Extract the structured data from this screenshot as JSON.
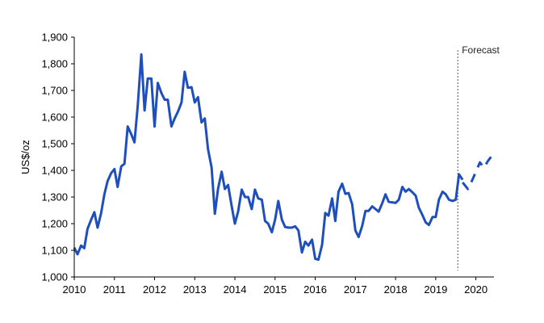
{
  "chart_data": {
    "type": "line",
    "title": "",
    "xlabel": "",
    "ylabel": "US$/oz",
    "xlim": [
      2010,
      2020.45
    ],
    "ylim": [
      1000,
      1900
    ],
    "y_ticks": [
      1000,
      1100,
      1200,
      1300,
      1400,
      1500,
      1600,
      1700,
      1800,
      1900
    ],
    "y_tick_labels": [
      "1,000",
      "1,100",
      "1,200",
      "1,300",
      "1,400",
      "1,500",
      "1,600",
      "1,700",
      "1,800",
      "1,900"
    ],
    "x_ticks": [
      2010,
      2011,
      2012,
      2013,
      2014,
      2015,
      2016,
      2017,
      2018,
      2019,
      2020
    ],
    "x_tick_labels": [
      "2010",
      "2011",
      "2012",
      "2013",
      "2014",
      "2015",
      "2016",
      "2017",
      "2018",
      "2019",
      "2020"
    ],
    "grid": false,
    "forecast_start": 2019.55,
    "forecast_label": "Forecast",
    "colors": {
      "series": "#1F4EBD",
      "forecast_line": "#555555",
      "axis": "#000000"
    },
    "series": [
      {
        "style": "solid",
        "x": [
          2010.0,
          2010.08,
          2010.17,
          2010.25,
          2010.33,
          2010.42,
          2010.5,
          2010.58,
          2010.67,
          2010.75,
          2010.83,
          2010.92,
          2011.0,
          2011.08,
          2011.17,
          2011.25,
          2011.33,
          2011.42,
          2011.5,
          2011.58,
          2011.67,
          2011.75,
          2011.83,
          2011.92,
          2012.0,
          2012.08,
          2012.17,
          2012.25,
          2012.33,
          2012.42,
          2012.5,
          2012.58,
          2012.67,
          2012.75,
          2012.83,
          2012.92,
          2013.0,
          2013.08,
          2013.17,
          2013.25,
          2013.33,
          2013.42,
          2013.5,
          2013.58,
          2013.67,
          2013.75,
          2013.83,
          2013.92,
          2014.0,
          2014.08,
          2014.17,
          2014.25,
          2014.33,
          2014.42,
          2014.5,
          2014.58,
          2014.67,
          2014.75,
          2014.83,
          2014.92,
          2015.0,
          2015.08,
          2015.17,
          2015.25,
          2015.33,
          2015.42,
          2015.5,
          2015.58,
          2015.67,
          2015.75,
          2015.83,
          2015.92,
          2016.0,
          2016.08,
          2016.17,
          2016.25,
          2016.33,
          2016.42,
          2016.5,
          2016.58,
          2016.67,
          2016.75,
          2016.83,
          2016.92,
          2017.0,
          2017.08,
          2017.17,
          2017.25,
          2017.33,
          2017.42,
          2017.5,
          2017.58,
          2017.67,
          2017.75,
          2017.83,
          2017.92,
          2018.0,
          2018.08,
          2018.17,
          2018.25,
          2018.33,
          2018.42,
          2018.5,
          2018.58,
          2018.67,
          2018.75,
          2018.83,
          2018.92,
          2019.0,
          2019.08,
          2019.17,
          2019.25,
          2019.33,
          2019.42,
          2019.5,
          2019.58,
          2019.67
        ],
        "y": [
          1110,
          1085,
          1118,
          1108,
          1180,
          1215,
          1243,
          1185,
          1240,
          1310,
          1360,
          1390,
          1405,
          1338,
          1415,
          1425,
          1565,
          1535,
          1505,
          1640,
          1835,
          1625,
          1745,
          1745,
          1565,
          1728,
          1690,
          1665,
          1665,
          1565,
          1595,
          1620,
          1655,
          1770,
          1710,
          1712,
          1655,
          1675,
          1580,
          1595,
          1480,
          1410,
          1237,
          1330,
          1395,
          1330,
          1345,
          1265,
          1200,
          1245,
          1328,
          1300,
          1300,
          1255,
          1328,
          1295,
          1290,
          1210,
          1200,
          1168,
          1215,
          1285,
          1215,
          1188,
          1185,
          1185,
          1190,
          1175,
          1092,
          1132,
          1118,
          1140,
          1068,
          1065,
          1120,
          1240,
          1230,
          1295,
          1210,
          1320,
          1350,
          1312,
          1315,
          1273,
          1175,
          1150,
          1192,
          1248,
          1248,
          1265,
          1255,
          1245,
          1278,
          1310,
          1282,
          1280,
          1278,
          1290,
          1338,
          1320,
          1330,
          1318,
          1305,
          1260,
          1232,
          1205,
          1195,
          1225,
          1225,
          1290,
          1320,
          1310,
          1290,
          1285,
          1290,
          1385,
          1365
        ]
      },
      {
        "style": "dashed",
        "x": [
          2019.67,
          2019.8,
          2019.9,
          2020.0,
          2020.1,
          2020.2,
          2020.3,
          2020.4
        ],
        "y": [
          1355,
          1330,
          1360,
          1395,
          1430,
          1410,
          1435,
          1455
        ]
      }
    ]
  }
}
